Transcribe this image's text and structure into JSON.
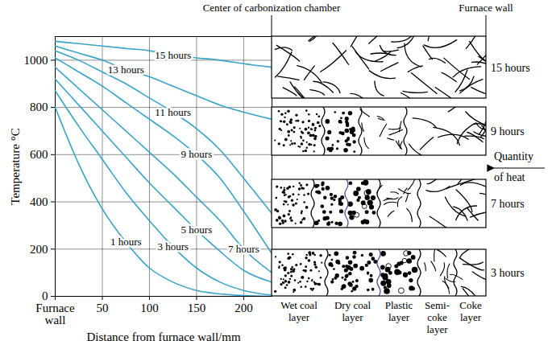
{
  "chart_data": {
    "type": "line",
    "x_label": "Distance from furnace wall/mm",
    "y_label": "Temperature °C",
    "x": [
      0,
      25,
      50,
      75,
      100,
      125,
      150,
      175,
      200,
      230
    ],
    "xlim": [
      0,
      230
    ],
    "xticks": [
      {
        "value": 0,
        "label": "Furnace wall"
      },
      50,
      100,
      150,
      200
    ],
    "ylim": [
      0,
      1100
    ],
    "yticks": [
      0,
      200,
      400,
      600,
      800,
      1000
    ],
    "grid": true,
    "series": [
      {
        "name": "1 hours",
        "color": "#3aa3c9",
        "values": [
          800,
          560,
          370,
          230,
          120,
          60,
          25,
          10,
          3,
          0
        ]
      },
      {
        "name": "3 hours",
        "color": "#3aa3c9",
        "values": [
          870,
          720,
          580,
          440,
          320,
          210,
          120,
          60,
          25,
          5
        ]
      },
      {
        "name": "5 hours",
        "color": "#3aa3c9",
        "values": [
          920,
          810,
          700,
          590,
          480,
          380,
          280,
          190,
          110,
          60
        ]
      },
      {
        "name": "7 hours",
        "color": "#3aa3c9",
        "values": [
          970,
          880,
          790,
          700,
          610,
          520,
          420,
          320,
          200,
          100
        ]
      },
      {
        "name": "9 hours",
        "color": "#3aa3c9",
        "values": [
          1010,
          950,
          890,
          820,
          750,
          680,
          600,
          500,
          360,
          180
        ]
      },
      {
        "name": "11 hours",
        "color": "#3aa3c9",
        "values": [
          1040,
          1000,
          950,
          900,
          840,
          780,
          710,
          620,
          500,
          350
        ]
      },
      {
        "name": "13 hours",
        "color": "#3aa3c9",
        "values": [
          1060,
          1030,
          1000,
          960,
          930,
          890,
          850,
          810,
          780,
          750
        ]
      },
      {
        "name": "15 hours",
        "color": "#3aa3c9",
        "values": [
          1080,
          1070,
          1060,
          1050,
          1040,
          1020,
          1010,
          1000,
          985,
          970
        ]
      }
    ]
  },
  "diagram": {
    "header": {
      "left": "Center of carbonization chamber",
      "right": "Furnace wall"
    },
    "heat_label": "Quantity of heat",
    "layer_labels": [
      "Wet coal layer",
      "Dry coal layer",
      "Plastic layer",
      "Semi-coke layer",
      "Coke layer"
    ],
    "bands": [
      {
        "label": "15 hours",
        "layers": [
          "Coke layer"
        ]
      },
      {
        "label": "9 hours",
        "layers": [
          "Wet coal layer",
          "Dry coal layer",
          "Semi-coke layer",
          "Coke layer"
        ]
      },
      {
        "label": "7 hours",
        "layers": [
          "Wet coal layer",
          "Dry coal layer",
          "Plastic layer",
          "Semi-coke layer",
          "Coke layer"
        ]
      },
      {
        "label": "3 hours",
        "layers": [
          "Wet coal layer",
          "Dry coal layer",
          "Plastic layer",
          "Semi-coke layer",
          "Coke layer"
        ]
      }
    ]
  }
}
